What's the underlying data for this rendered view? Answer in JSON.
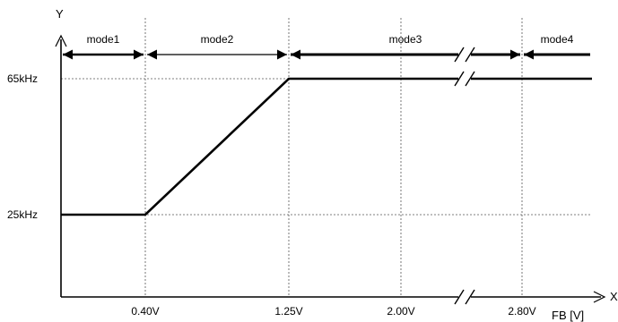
{
  "chart_data": {
    "type": "line",
    "title": "",
    "xlabel": "FB [V]",
    "ylabel": "Y",
    "x_axis_end_label": "X",
    "x_ticks": [
      "0.40V",
      "1.25V",
      "2.00V",
      "2.80V"
    ],
    "y_ticks": [
      "25kHz",
      "65kHz"
    ],
    "x_break_between": [
      "2.00V",
      "2.80V"
    ],
    "series": [
      {
        "points": [
          {
            "x": 0.0,
            "y": 25
          },
          {
            "x": 0.4,
            "y": 25
          },
          {
            "x": 1.25,
            "y": 65
          },
          {
            "x": 3.2,
            "y": 65
          }
        ]
      }
    ],
    "modes": [
      {
        "label": "mode1",
        "from": 0.0,
        "to": 0.4
      },
      {
        "label": "mode2",
        "from": 0.4,
        "to": 1.25
      },
      {
        "label": "mode3",
        "from": 1.25,
        "to": 2.8
      },
      {
        "label": "mode4",
        "from": 2.8,
        "to": 3.2
      }
    ],
    "grid": "dashed reference lines at tick values"
  }
}
